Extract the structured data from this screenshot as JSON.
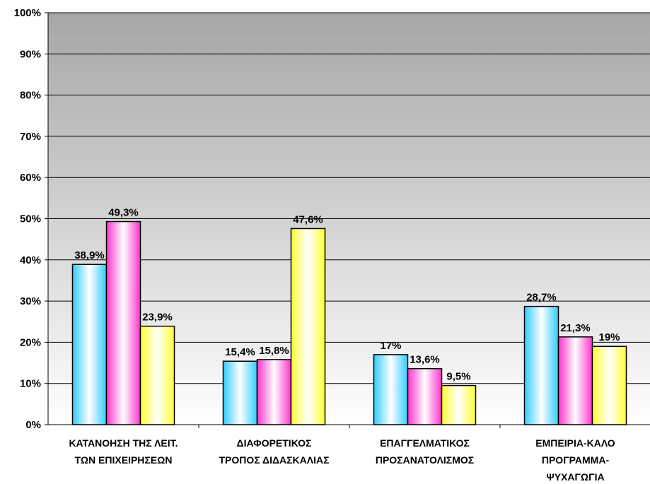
{
  "chart_data": {
    "type": "bar",
    "categories": [
      [
        "ΚΑΤΑΝΟΗΣΗ ΤΗΣ ΛΕΙΤ.",
        "ΤΩΝ ΕΠΙΧΕΙΡΗΣΕΩΝ"
      ],
      [
        "ΔΙΑΦΟΡΕΤΙΚΟΣ",
        "ΤΡΟΠΟΣ ΔΙΔΑΣΚΑΛΙΑΣ"
      ],
      [
        "ΕΠΑΓΓΕΛΜΑΤΙΚΟΣ",
        "ΠΡΟΣΑΝΑΤΟΛΙΣΜΟΣ"
      ],
      [
        "ΕΜΠΕΙΡΙΑ-ΚΑΛΟ",
        "ΠΡΟΓΡΑΜΜΑ-",
        "ΨΥΧΑΓΩΓΙΑ"
      ]
    ],
    "series": [
      {
        "color": "#33ccff",
        "values": [
          38.9,
          15.4,
          17,
          28.7
        ],
        "labels": [
          "38,9%",
          "15,4%",
          "17%",
          "28,7%"
        ]
      },
      {
        "color": "#ff33cc",
        "values": [
          49.3,
          15.8,
          13.6,
          21.3
        ],
        "labels": [
          "49,3%",
          "15,8%",
          "13,6%",
          "21,3%"
        ]
      },
      {
        "color": "#ffff33",
        "values": [
          23.9,
          47.6,
          9.5,
          19
        ],
        "labels": [
          "23,9%",
          "47,6%",
          "9,5%",
          "19%"
        ]
      }
    ],
    "yticks": [
      "0%",
      "10%",
      "20%",
      "30%",
      "40%",
      "50%",
      "60%",
      "70%",
      "80%",
      "90%",
      "100%"
    ],
    "ylim": [
      0,
      100
    ],
    "grid": true,
    "legend": "none",
    "title": "",
    "xlabel": "",
    "ylabel": ""
  }
}
